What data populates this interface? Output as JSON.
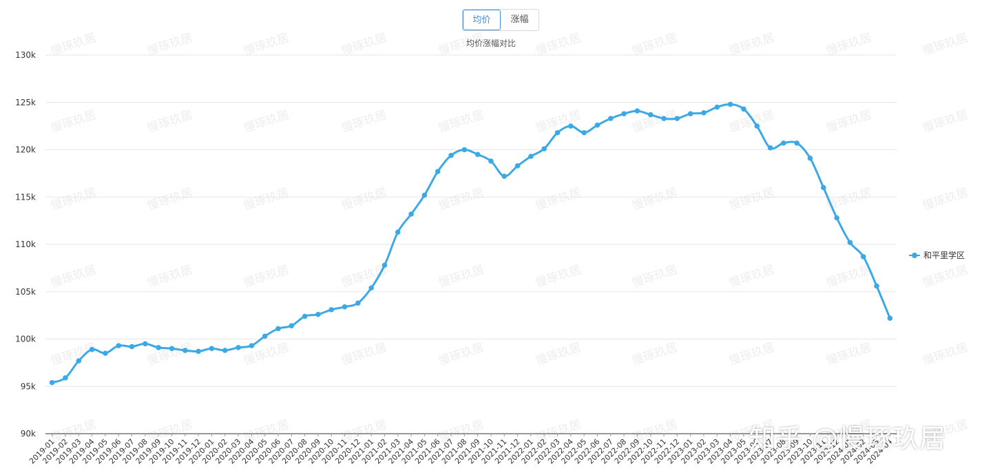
{
  "toggle": {
    "tabs": [
      "均价",
      "涨幅"
    ],
    "active_index": 0
  },
  "watermark": "慢琢玖居",
  "credit": "知乎 @慢琢玖居",
  "colors": {
    "series": "#3aa9e6",
    "accent": "#3a8fd9",
    "grid": "#e6e6e6",
    "axis": "#333333"
  },
  "chart_data": {
    "type": "line",
    "title": "均价涨幅对比",
    "legend_position": "right",
    "grid": true,
    "ylim": [
      90000,
      130000
    ],
    "yticks": [
      90000,
      95000,
      100000,
      105000,
      110000,
      115000,
      120000,
      125000,
      130000
    ],
    "ytick_labels": [
      "90k",
      "95k",
      "100k",
      "105k",
      "110k",
      "115k",
      "120k",
      "125k",
      "130k"
    ],
    "x": [
      "2019-01",
      "2019-02",
      "2019-03",
      "2019-04",
      "2019-05",
      "2019-06",
      "2019-07",
      "2019-08",
      "2019-09",
      "2019-10",
      "2019-11",
      "2019-12",
      "2020-01",
      "2020-02",
      "2020-03",
      "2020-04",
      "2020-05",
      "2020-06",
      "2020-07",
      "2020-08",
      "2020-09",
      "2020-10",
      "2020-11",
      "2020-12",
      "2021-01",
      "2021-02",
      "2021-03",
      "2021-04",
      "2021-05",
      "2021-06",
      "2021-07",
      "2021-08",
      "2021-09",
      "2021-10",
      "2021-11",
      "2021-12",
      "2022-01",
      "2022-02",
      "2022-03",
      "2022-04",
      "2022-05",
      "2022-06",
      "2022-07",
      "2022-08",
      "2022-09",
      "2022-10",
      "2022-11",
      "2022-12",
      "2023-01",
      "2023-02",
      "2023-03",
      "2023-04",
      "2023-05",
      "2023-06",
      "2023-07",
      "2023-08",
      "2023-09",
      "2023-10",
      "2023-11",
      "2023-12",
      "2024-01",
      "2024-02",
      "2024-03",
      "2024-04"
    ],
    "series": [
      {
        "name": "和平里学区",
        "values": [
          95400,
          95900,
          97700,
          98900,
          98500,
          99300,
          99200,
          99500,
          99100,
          99000,
          98800,
          98700,
          99000,
          98800,
          99100,
          99300,
          100300,
          101100,
          101400,
          102400,
          102600,
          103100,
          103400,
          103800,
          105400,
          107800,
          111300,
          113200,
          115200,
          117700,
          119400,
          120000,
          119500,
          118800,
          117200,
          118300,
          119300,
          120100,
          121800,
          122500,
          121800,
          122600,
          123300,
          123800,
          124100,
          123700,
          123300,
          123300,
          123800,
          123900,
          124500,
          124800,
          124300,
          122500,
          120200,
          120700,
          120700,
          119100,
          116000,
          112800,
          110200,
          108700,
          105600,
          102200
        ]
      }
    ]
  }
}
